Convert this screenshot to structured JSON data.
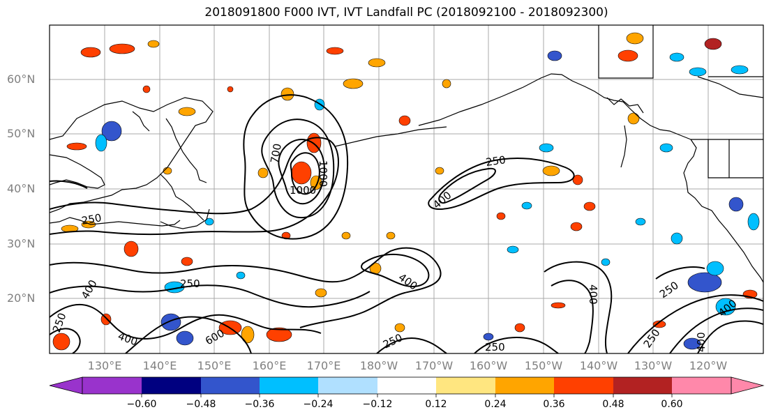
{
  "title": "2018091800 F000 IVT, IVT Landfall PC (2018092100 - 2018092300)",
  "map": {
    "lat_labels": [
      "60°N",
      "50°N",
      "40°N",
      "30°N",
      "20°N"
    ],
    "lon_labels": [
      "130°E",
      "140°E",
      "150°E",
      "160°E",
      "170°E",
      "180°W",
      "170°W",
      "160°W",
      "150°W",
      "140°W",
      "130°W",
      "120°W"
    ],
    "contour_labels": [
      "250",
      "250",
      "250",
      "250",
      "250",
      "250",
      "250",
      "400",
      "400",
      "400",
      "400",
      "400",
      "400",
      "400",
      "1000",
      "1000",
      "700",
      "600",
      "250"
    ]
  },
  "colorbar": {
    "tick_labels": [
      "−0.60",
      "−0.48",
      "−0.36",
      "−0.24",
      "−0.12",
      "0.12",
      "0.24",
      "0.36",
      "0.48",
      "0.60"
    ],
    "colors": [
      "#9933cc",
      "#000080",
      "#3355cc",
      "#00bfff",
      "#b0e0ff",
      "#ffffff",
      "#ffe680",
      "#ffa500",
      "#ff4000",
      "#b22222",
      "#ff88aa",
      "#ff88aa"
    ]
  }
}
